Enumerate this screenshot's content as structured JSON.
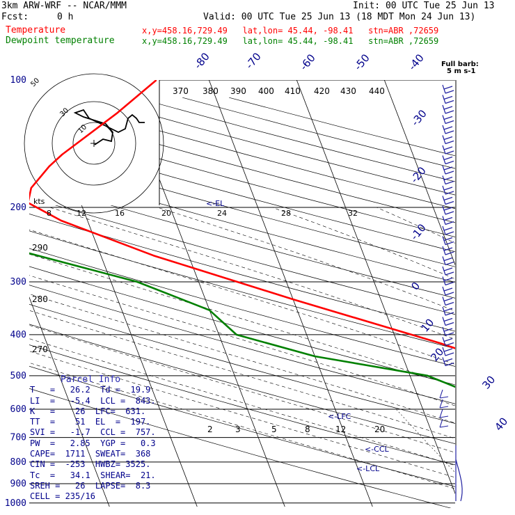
{
  "header": {
    "model": "3km ARW-WRF -- NCAR/MMM",
    "init": "Init: 00 UTC Tue 25 Jun 13",
    "fcst_label": "Fcst:",
    "fcst_value": "0 h",
    "valid": "Valid: 00 UTC Tue 25 Jun 13 (18 MDT Mon 24 Jun 13)",
    "legend": [
      {
        "name": "Temperature",
        "info": "x,y=458.16,729.49   lat,lon= 45.44, -98.41   stn=ABR ,72659",
        "color": "#ff0000"
      },
      {
        "name": "Dewpoint temperature",
        "info": "x,y=458.16,729.49   lat,lon= 45.44, -98.41   stn=ABR ,72659",
        "color": "#008000"
      }
    ]
  },
  "chart_data": {
    "type": "line",
    "title": "Skew-T log-P sounding",
    "pressure_levels": [
      100,
      200,
      300,
      400,
      500,
      600,
      700,
      800,
      900,
      1000
    ],
    "isotherm_labels": [
      "-80",
      "-70",
      "-60",
      "-50",
      "-40",
      "-30",
      "-20",
      "-10",
      "0",
      "10",
      "20",
      "30",
      "40"
    ],
    "dry_adiabat_labels": [
      "370",
      "380",
      "390",
      "400",
      "410",
      "420",
      "430",
      "440",
      "290",
      "280",
      "270"
    ],
    "mixing_ratio_labels": [
      "2",
      "3",
      "5",
      "8",
      "12",
      "20"
    ],
    "hodograph_speed_labels": [
      "kts",
      "8",
      "12",
      "16",
      "20",
      "24",
      "28",
      "32"
    ],
    "hodograph_ring_labels": [
      "50",
      "30",
      "10"
    ],
    "level_markers": [
      "<-EL",
      "<-LFC",
      "<-CCL",
      "<-LCL"
    ],
    "wind_barb_key": [
      "Full barb:",
      "5 m s-1"
    ],
    "series": [
      {
        "name": "Temperature",
        "color": "#ff0000",
        "p": [
          910,
          875,
          850,
          810,
          770,
          700,
          600,
          500,
          420,
          330,
          260,
          215,
          195,
          180,
          160,
          150,
          120,
          100
        ],
        "t": [
          26.2,
          22.5,
          20.6,
          18.1,
          15.5,
          10.5,
          3.5,
          -5.5,
          -15,
          -30,
          -44,
          -53,
          -56,
          -55,
          -52,
          -50,
          -42,
          -36
        ]
      },
      {
        "name": "Dewpoint temperature",
        "color": "#008000",
        "p": [
          910,
          890,
          875,
          862,
          850,
          810,
          790,
          770,
          700,
          600,
          500,
          450,
          400,
          350,
          300,
          250,
          200,
          180,
          160,
          150,
          130,
          110,
          100
        ],
        "t": [
          19.9,
          19.6,
          14,
          12,
          10,
          -2,
          -2,
          -4,
          -3,
          -10,
          -18,
          -30,
          -38,
          -40,
          -47,
          -60,
          -68,
          -70,
          -69,
          -70,
          -65,
          -72,
          -68
        ]
      }
    ]
  },
  "parcel_info": {
    "title": "Parcel Info",
    "rows": [
      "T   =   26.2  Td =  19.9",
      "LI  =   -5.4  LCL =  843.",
      "K   =    26  LFC=  631.",
      "TT  =    51  EL  =  197.",
      "SVI =   -1.7  CCL =  757.",
      "PW  =   2.85  YGP =   0.3",
      "CAPE=  1711  SWEAT=  368",
      "CIN =  -253  HWBZ= 3525.",
      "Tc  =   34.1  SHEAR=  21.",
      "SREH =   26  LAPSE=  8.3",
      "CELL = 235/16"
    ]
  }
}
